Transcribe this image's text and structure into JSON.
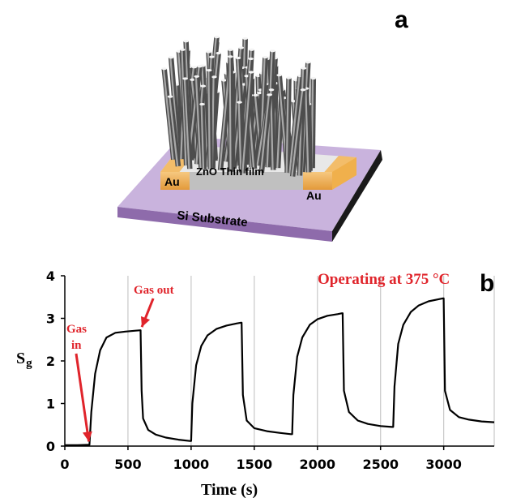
{
  "panel_a": {
    "letter": "a",
    "labels": {
      "au_left": "Au",
      "thin_film": "ZnO Thin film",
      "au_right": "Au",
      "substrate": "Si Substrate"
    }
  },
  "panel_b": {
    "letter": "b",
    "operating_note": "Operating at 375 °C",
    "ylabel_main": "S",
    "ylabel_sub": "g",
    "annotations": {
      "gas_out": "Gas out",
      "gas_in_line1": "Gas",
      "gas_in_line2": "in"
    }
  },
  "chart_data": {
    "type": "line",
    "title": "",
    "xlabel": "Time (s)",
    "ylabel": "Sg",
    "xlim": [
      0,
      3400
    ],
    "ylim": [
      0,
      4
    ],
    "x_ticks": [
      0,
      500,
      1000,
      1500,
      2000,
      2500,
      3000
    ],
    "y_ticks": [
      0,
      1,
      2,
      3,
      4
    ],
    "grid": "vertical",
    "colors": {
      "line": "#000000",
      "annotation": "#e0242b",
      "grid": "#c8c8c8"
    },
    "series": [
      {
        "values_x": [
          0,
          100,
          195,
          210,
          240,
          280,
          330,
          400,
          480,
          560,
          600,
          608,
          620,
          660,
          720,
          800,
          900,
          990,
          1000,
          1010,
          1040,
          1080,
          1130,
          1200,
          1280,
          1360,
          1395,
          1400,
          1410,
          1440,
          1500,
          1600,
          1700,
          1790,
          1800,
          1810,
          1840,
          1880,
          1940,
          2000,
          2080,
          2160,
          2195,
          2200,
          2210,
          2250,
          2320,
          2400,
          2500,
          2590,
          2600,
          2610,
          2640,
          2680,
          2740,
          2800,
          2880,
          2960,
          2995,
          3000,
          3010,
          3050,
          3120,
          3200,
          3300,
          3400
        ],
        "values_y": [
          0.02,
          0.02,
          0.03,
          0.8,
          1.7,
          2.25,
          2.55,
          2.66,
          2.69,
          2.71,
          2.72,
          1.3,
          0.65,
          0.38,
          0.27,
          0.2,
          0.15,
          0.12,
          0.12,
          1.0,
          1.9,
          2.35,
          2.6,
          2.75,
          2.83,
          2.88,
          2.9,
          2.9,
          1.2,
          0.6,
          0.42,
          0.35,
          0.31,
          0.28,
          0.28,
          1.2,
          2.1,
          2.55,
          2.85,
          2.98,
          3.06,
          3.1,
          3.12,
          3.12,
          1.3,
          0.8,
          0.6,
          0.52,
          0.47,
          0.45,
          0.45,
          1.4,
          2.4,
          2.85,
          3.15,
          3.3,
          3.4,
          3.45,
          3.47,
          3.47,
          1.3,
          0.85,
          0.68,
          0.62,
          0.58,
          0.56
        ]
      }
    ]
  }
}
